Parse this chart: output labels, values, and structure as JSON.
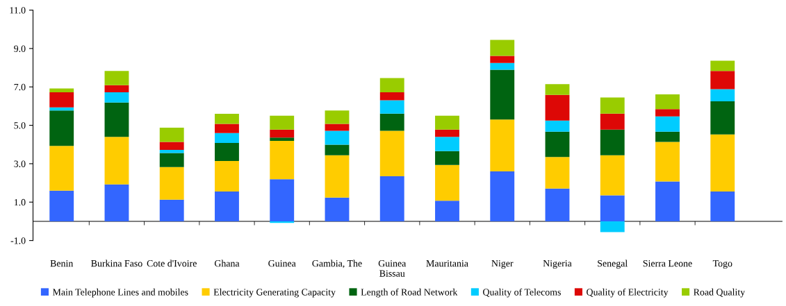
{
  "chart_data": {
    "type": "bar",
    "stacked": true,
    "categories": [
      "Benin",
      "Burkina Faso",
      "Cote d'Ivoire",
      "Ghana",
      "Guinea",
      "Gambia, The",
      "Guinea\nBissau",
      "Mauritania",
      "Niger",
      "Nigeria",
      "Senegal",
      "Sierra Leone",
      "Togo"
    ],
    "series": [
      {
        "name": "Main Telephone Lines and mobiles",
        "color": "#3366ff",
        "values": [
          1.6,
          1.92,
          1.13,
          1.55,
          2.19,
          1.24,
          2.35,
          1.07,
          2.6,
          1.71,
          1.35,
          2.08,
          1.55
        ]
      },
      {
        "name": "Electricity Generating Capacity",
        "color": "#ffcc00",
        "values": [
          2.33,
          2.48,
          1.7,
          1.59,
          2.0,
          2.2,
          2.36,
          1.86,
          2.7,
          1.64,
          2.09,
          2.06,
          2.97
        ]
      },
      {
        "name": "Length of Road Network",
        "color": "#006411",
        "values": [
          1.84,
          1.79,
          0.73,
          0.94,
          0.17,
          0.55,
          0.9,
          0.73,
          2.59,
          1.32,
          1.34,
          0.53,
          1.73
        ]
      },
      {
        "name": "Quality of Telecoms",
        "color": "#00ccff",
        "values": [
          0.16,
          0.53,
          0.16,
          0.52,
          -0.08,
          0.72,
          0.69,
          0.74,
          0.36,
          0.58,
          -0.56,
          0.79,
          0.63
        ]
      },
      {
        "name": "Quality of Electricity",
        "color": "#dd0806",
        "values": [
          0.79,
          0.37,
          0.42,
          0.48,
          0.42,
          0.37,
          0.42,
          0.38,
          0.37,
          1.33,
          0.83,
          0.38,
          0.95
        ]
      },
      {
        "name": "Road Quality",
        "color": "#99cc00",
        "values": [
          0.2,
          0.74,
          0.74,
          0.52,
          0.72,
          0.69,
          0.74,
          0.72,
          0.83,
          0.56,
          0.84,
          0.77,
          0.53
        ]
      }
    ],
    "ylim": [
      -1,
      11
    ],
    "yticks": [
      {
        "value": -1,
        "label": "-1.0"
      },
      {
        "value": 1,
        "label": "1.0"
      },
      {
        "value": 3,
        "label": "3.0"
      },
      {
        "value": 5,
        "label": "5.0"
      },
      {
        "value": 7,
        "label": "7.0"
      },
      {
        "value": 9,
        "label": "9.0"
      },
      {
        "value": 11,
        "label": "11.0"
      }
    ],
    "grid": false,
    "legend": "bottom"
  }
}
